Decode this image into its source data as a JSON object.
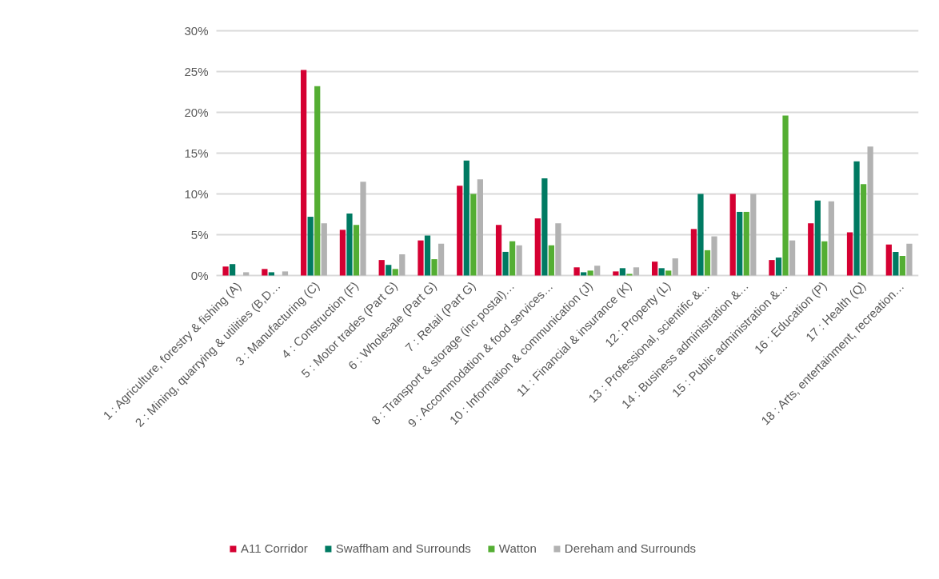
{
  "chart_data": {
    "type": "bar",
    "categories": [
      "1 : Agriculture, forestry & fishing (A)",
      "2 : Mining, quarrying & utilities (B,D…",
      "3 : Manufacturing (C)",
      "4 : Construction (F)",
      "5 : Motor trades (Part G)",
      "6 : Wholesale (Part G)",
      "7 : Retail (Part G)",
      "8 : Transport & storage (inc postal)…",
      "9 : Accommodation & food services…",
      "10 : Information & communication (J)",
      "11 : Financial & insurance (K)",
      "12 : Property (L)",
      "13 : Professional, scientific &…",
      "14 : Business administration &…",
      "15 : Public administration &…",
      "16 : Education (P)",
      "17 : Health (Q)",
      "18 : Arts, entertainment, recreation…"
    ],
    "series": [
      {
        "name": "A11 Corridor",
        "color": "#d50032",
        "values": [
          1.1,
          0.8,
          25.2,
          5.6,
          1.9,
          4.3,
          11.0,
          6.2,
          7.0,
          1.0,
          0.5,
          1.7,
          5.7,
          10.0,
          1.9,
          6.4,
          5.3,
          3.8
        ]
      },
      {
        "name": "Swaffham and Surrounds",
        "color": "#007a62",
        "values": [
          1.4,
          0.4,
          7.2,
          7.6,
          1.3,
          4.9,
          14.1,
          2.9,
          11.9,
          0.4,
          0.9,
          0.9,
          10.0,
          7.8,
          2.2,
          9.2,
          14.0,
          2.9
        ]
      },
      {
        "name": "Watton",
        "color": "#54ae33",
        "values": [
          0,
          0,
          23.2,
          6.2,
          0.8,
          2.0,
          10.0,
          4.2,
          3.7,
          0.6,
          0.2,
          0.6,
          3.1,
          7.8,
          19.6,
          4.2,
          11.2,
          2.4
        ]
      },
      {
        "name": "Dereham and Surrounds",
        "color": "#b2b2b2",
        "values": [
          0.4,
          0.5,
          6.4,
          11.5,
          2.6,
          3.9,
          11.8,
          3.7,
          6.4,
          1.2,
          1.0,
          2.1,
          4.8,
          10.0,
          4.3,
          9.1,
          15.8,
          3.9
        ]
      }
    ],
    "ylim": [
      0,
      30
    ],
    "yticks": [
      {
        "value": 0,
        "label": "0%"
      },
      {
        "value": 5,
        "label": "5%"
      },
      {
        "value": 10,
        "label": "10%"
      },
      {
        "value": 15,
        "label": "15%"
      },
      {
        "value": 20,
        "label": "20%"
      },
      {
        "value": 25,
        "label": "25%"
      },
      {
        "value": 30,
        "label": "30%"
      }
    ],
    "grid": "y",
    "legend": "bottom"
  }
}
